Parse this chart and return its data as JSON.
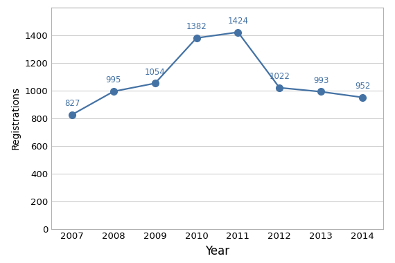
{
  "years": [
    2007,
    2008,
    2009,
    2010,
    2011,
    2012,
    2013,
    2014
  ],
  "values": [
    827,
    995,
    1054,
    1382,
    1424,
    1022,
    993,
    952
  ],
  "xlabel": "Year",
  "ylabel": "Registrations",
  "ylim": [
    0,
    1600
  ],
  "yticks": [
    0,
    200,
    400,
    600,
    800,
    1000,
    1200,
    1400
  ],
  "line_color": "#4472a4",
  "marker_color": "#4472a4",
  "marker_style": "o",
  "marker_size": 7,
  "linewidth": 1.6,
  "annotation_color": "#4472a4",
  "annotation_fontsize": 8.5,
  "xlabel_fontsize": 12,
  "ylabel_fontsize": 10,
  "tick_fontsize": 9.5,
  "background_color": "#ffffff",
  "plot_bg_color": "#ffffff",
  "grid_color": "#d0d0d0",
  "spine_color": "#b0b0b0"
}
